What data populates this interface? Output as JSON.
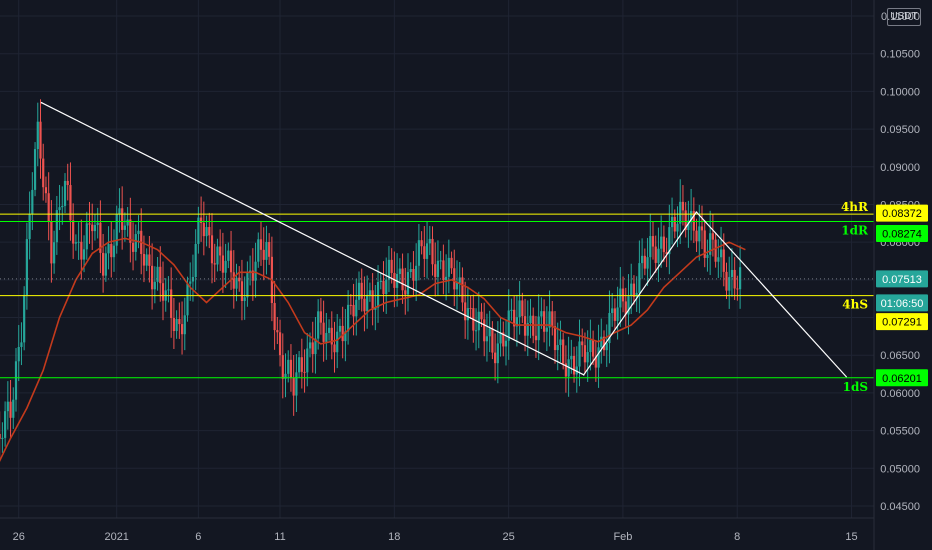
{
  "chart_data": {
    "type": "candlestick",
    "currency": "USDT",
    "y_axis": {
      "range": [
        0.0445,
        0.1155
      ],
      "ticks": [
        "0.11000",
        "0.10500",
        "0.10000",
        "0.09500",
        "0.09000",
        "0.08500",
        "0.08000",
        "0.07500",
        "0.07000",
        "0.06500",
        "0.06000",
        "0.05500",
        "0.05000",
        "0.04500"
      ]
    },
    "x_axis": {
      "ticks": [
        {
          "label": "26",
          "day": -6
        },
        {
          "label": "2021",
          "day": 0
        },
        {
          "label": "6",
          "day": 5
        },
        {
          "label": "11",
          "day": 10
        },
        {
          "label": "18",
          "day": 17
        },
        {
          "label": "25",
          "day": 24
        },
        {
          "label": "Feb",
          "day": 31
        },
        {
          "label": "8",
          "day": 38
        },
        {
          "label": "15",
          "day": 45
        }
      ]
    },
    "last_price": "0.07513",
    "countdown": "01:06:50",
    "price_tags": [
      {
        "value": "0.08372",
        "price": 0.08372,
        "bg": "#ffff00",
        "fg": "#000000"
      },
      {
        "value": "0.08274",
        "price": 0.08274,
        "bg": "#00ff00",
        "fg": "#000000"
      },
      {
        "value": "0.07291",
        "price": 0.07291,
        "bg": "#ffff00",
        "fg": "#000000"
      },
      {
        "value": "0.06201",
        "price": 0.06201,
        "bg": "#00ff00",
        "fg": "#000000"
      }
    ],
    "horizontal_levels": [
      {
        "price": 0.08372,
        "color": "#ffff00",
        "label": "4hR"
      },
      {
        "price": 0.08274,
        "color": "#00ff00",
        "label": "1dR"
      },
      {
        "price": 0.07291,
        "color": "#ffff00",
        "label": "4hS"
      },
      {
        "price": 0.06201,
        "color": "#00ff00",
        "label": "1dS"
      }
    ],
    "trendlines": [
      {
        "from": [
          -4.6,
          0.0985
        ],
        "to": [
          28.6,
          0.0624
        ]
      },
      {
        "from": [
          28.6,
          0.0624
        ],
        "to": [
          35.5,
          0.084
        ]
      },
      {
        "from": [
          35.5,
          0.084
        ],
        "to": [
          44.7,
          0.0621
        ]
      }
    ],
    "price_path": [
      [
        -7.5,
        0.051
      ],
      [
        -6.5,
        0.058
      ],
      [
        -5.8,
        0.07
      ],
      [
        -5.2,
        0.087
      ],
      [
        -4.8,
        0.094
      ],
      [
        -4.0,
        0.08
      ],
      [
        -3.2,
        0.087
      ],
      [
        -2.5,
        0.079
      ],
      [
        -1.5,
        0.083
      ],
      [
        -0.8,
        0.076
      ],
      [
        0.2,
        0.085
      ],
      [
        0.8,
        0.079
      ],
      [
        1.5,
        0.08
      ],
      [
        2.2,
        0.076
      ],
      [
        3.0,
        0.072
      ],
      [
        3.8,
        0.069
      ],
      [
        4.5,
        0.074
      ],
      [
        5.2,
        0.083
      ],
      [
        6.0,
        0.079
      ],
      [
        6.8,
        0.076
      ],
      [
        7.5,
        0.074
      ],
      [
        8.5,
        0.077
      ],
      [
        9.2,
        0.079
      ],
      [
        10.0,
        0.065
      ],
      [
        10.8,
        0.06
      ],
      [
        11.5,
        0.065
      ],
      [
        12.3,
        0.069
      ],
      [
        13.0,
        0.066
      ],
      [
        14.0,
        0.07
      ],
      [
        15.0,
        0.072
      ],
      [
        16.0,
        0.074
      ],
      [
        17.0,
        0.075
      ],
      [
        18.0,
        0.076
      ],
      [
        19.0,
        0.079
      ],
      [
        20.0,
        0.077
      ],
      [
        21.0,
        0.073
      ],
      [
        22.0,
        0.07
      ],
      [
        23.0,
        0.065
      ],
      [
        24.0,
        0.07
      ],
      [
        25.0,
        0.069
      ],
      [
        26.0,
        0.07
      ],
      [
        27.0,
        0.066
      ],
      [
        28.0,
        0.064
      ],
      [
        29.0,
        0.065
      ],
      [
        30.0,
        0.068
      ],
      [
        31.0,
        0.072
      ],
      [
        32.0,
        0.076
      ],
      [
        33.0,
        0.079
      ],
      [
        34.0,
        0.082
      ],
      [
        35.0,
        0.083
      ],
      [
        35.6,
        0.083
      ],
      [
        36.0,
        0.079
      ],
      [
        36.8,
        0.078
      ],
      [
        37.5,
        0.076
      ],
      [
        38.2,
        0.0745
      ]
    ],
    "moving_average": [
      [
        -7.5,
        0.0495
      ],
      [
        -6.5,
        0.054
      ],
      [
        -5.5,
        0.058
      ],
      [
        -4.5,
        0.063
      ],
      [
        -3.5,
        0.07
      ],
      [
        -2.5,
        0.075
      ],
      [
        -1.5,
        0.0785
      ],
      [
        -0.5,
        0.08
      ],
      [
        0.5,
        0.0805
      ],
      [
        1.5,
        0.08
      ],
      [
        2.5,
        0.079
      ],
      [
        3.5,
        0.077
      ],
      [
        4.5,
        0.074
      ],
      [
        5.5,
        0.072
      ],
      [
        6.5,
        0.074
      ],
      [
        7.5,
        0.076
      ],
      [
        8.5,
        0.076
      ],
      [
        9.5,
        0.075
      ],
      [
        10.5,
        0.072
      ],
      [
        11.5,
        0.068
      ],
      [
        12.5,
        0.0665
      ],
      [
        13.5,
        0.067
      ],
      [
        14.5,
        0.069
      ],
      [
        15.5,
        0.071
      ],
      [
        16.5,
        0.072
      ],
      [
        17.5,
        0.0725
      ],
      [
        18.5,
        0.073
      ],
      [
        19.5,
        0.0745
      ],
      [
        20.5,
        0.075
      ],
      [
        21.5,
        0.074
      ],
      [
        22.5,
        0.0725
      ],
      [
        23.5,
        0.07
      ],
      [
        24.5,
        0.069
      ],
      [
        25.5,
        0.069
      ],
      [
        26.5,
        0.069
      ],
      [
        27.5,
        0.068
      ],
      [
        28.5,
        0.0675
      ],
      [
        29.5,
        0.0668
      ],
      [
        30.5,
        0.068
      ],
      [
        31.5,
        0.069
      ],
      [
        32.5,
        0.071
      ],
      [
        33.5,
        0.074
      ],
      [
        34.5,
        0.076
      ],
      [
        35.5,
        0.078
      ],
      [
        36.5,
        0.079
      ],
      [
        37.5,
        0.08
      ],
      [
        38.5,
        0.079
      ]
    ],
    "candle_spacing_days": 0.1667,
    "colors": {
      "up": "#26a69a",
      "down": "#ef5350",
      "ma": "#c33a1c",
      "trendline": "#ffffff",
      "background": "#131722",
      "grid": "#1f2433"
    }
  }
}
